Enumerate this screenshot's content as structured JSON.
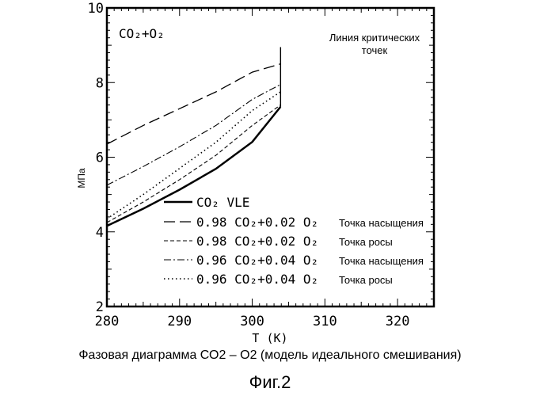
{
  "chart_data": {
    "type": "line",
    "title": "",
    "xlabel": "T (K)",
    "ylabel": "МПа",
    "xlim": [
      280,
      325
    ],
    "ylim": [
      2,
      10
    ],
    "xticks": [
      280,
      290,
      300,
      310,
      320
    ],
    "yticks": [
      2,
      4,
      6,
      8,
      10
    ],
    "grid": false,
    "inset_label": "CO2+O2",
    "annotation": "Линия критических точек",
    "legend_placement": "bottom-center",
    "series": [
      {
        "name": "CO2 VLE",
        "style": "solid",
        "x": [
          280,
          285,
          290,
          295,
          300,
          303.9
        ],
        "y": [
          4.16,
          4.62,
          5.13,
          5.69,
          6.41,
          7.35
        ]
      },
      {
        "name": "0.98 CO2+0.02 O2 Точка насыщения",
        "style": "long-dash",
        "x": [
          280,
          285,
          290,
          295,
          300,
          303.9
        ],
        "y": [
          6.35,
          6.85,
          7.3,
          7.75,
          8.28,
          8.5
        ]
      },
      {
        "name": "0.98 CO2+0.02 O2 Точка росы",
        "style": "dash",
        "x": [
          280,
          285,
          290,
          295,
          300,
          303.9
        ],
        "y": [
          4.25,
          4.8,
          5.4,
          6.05,
          6.85,
          7.4
        ]
      },
      {
        "name": "0.96 CO2+0.04 O2 Точка насыщения",
        "style": "dash-dot",
        "x": [
          280,
          285,
          290,
          295,
          300,
          303.9
        ],
        "y": [
          5.25,
          5.75,
          6.28,
          6.85,
          7.55,
          7.95
        ]
      },
      {
        "name": "0.96 CO2+0.04 O2 Точка росы",
        "style": "dotted",
        "x": [
          280,
          285,
          290,
          295,
          300,
          303.9
        ],
        "y": [
          4.35,
          5.0,
          5.7,
          6.4,
          7.25,
          7.75
        ]
      }
    ],
    "critical_line": {
      "x": [
        303.9,
        303.9
      ],
      "y": [
        7.35,
        8.95
      ]
    }
  },
  "legend": {
    "items": [
      {
        "a": "CO₂ VLE",
        "b": "",
        "c": ""
      },
      {
        "a": "0.98 CO₂+0.02 O₂",
        "b": "",
        "c": "Точка насыщения"
      },
      {
        "a": "0.98 CO₂+0.02 O₂",
        "b": "",
        "c": "Точка росы"
      },
      {
        "a": "0.96 CO₂+0.04 O₂",
        "b": "",
        "c": "Точка насыщения"
      },
      {
        "a": "0.96 CO₂+0.04 O₂",
        "b": "",
        "c": "Точка росы"
      }
    ]
  },
  "labels": {
    "inset": "CO₂+O₂",
    "annotation_line1": "Линия критических",
    "annotation_line2": "точек"
  },
  "caption": {
    "line1": "Фазовая диаграмма СО2 – О2 (модель идеального смешивания)",
    "line2": "Фиг.2"
  }
}
